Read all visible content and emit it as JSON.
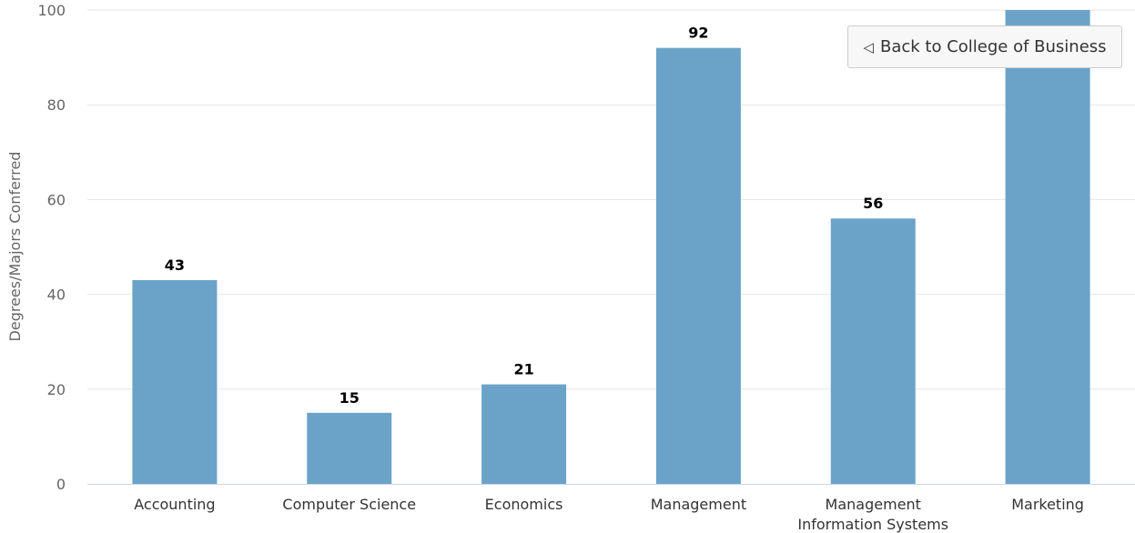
{
  "chart_data": {
    "type": "bar",
    "categories": [
      "Accounting",
      "Computer Science",
      "Economics",
      "Management",
      "Management Information Systems",
      "Marketing"
    ],
    "category_lines": [
      [
        "Accounting"
      ],
      [
        "Computer Science"
      ],
      [
        "Economics"
      ],
      [
        "Management"
      ],
      [
        "Management",
        "Information Systems"
      ],
      [
        "Marketing"
      ]
    ],
    "values": [
      43,
      15,
      21,
      92,
      56,
      100
    ],
    "data_labels": [
      "43",
      "15",
      "21",
      "92",
      "56",
      ""
    ],
    "ylabel": "Degrees/Majors Conferred",
    "ylim": [
      0,
      100
    ],
    "yticks": [
      0,
      20,
      40,
      60,
      80,
      100
    ],
    "grid": true,
    "bar_color": "#6ba3c8",
    "grid_color": "#e6e6e6",
    "axis_color": "#ccd6eb"
  },
  "drilldown": {
    "arrow_icon": "triangle-left-icon",
    "arrow_glyph": "◁",
    "back_label": "Back to College of Business"
  }
}
